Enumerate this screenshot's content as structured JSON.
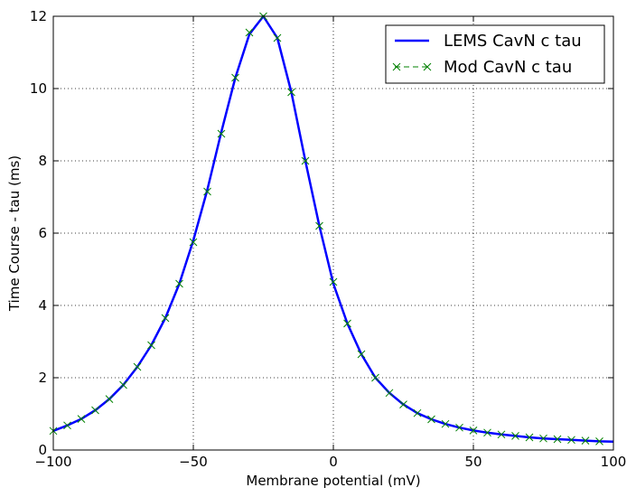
{
  "chart_data": {
    "type": "line",
    "title": "",
    "xlabel": "Membrane potential (mV)",
    "ylabel": "Time Course - tau (ms)",
    "xlim": [
      -100,
      100
    ],
    "ylim": [
      0,
      12
    ],
    "xticks": [
      -100,
      -50,
      0,
      50,
      100
    ],
    "xtick_labels": [
      "−100",
      "−50",
      "0",
      "50",
      "100"
    ],
    "yticks": [
      0,
      2,
      4,
      6,
      8,
      10,
      12
    ],
    "ytick_labels": [
      "0",
      "2",
      "4",
      "6",
      "8",
      "10",
      "12"
    ],
    "grid": true,
    "legend_position": "top-right",
    "series": [
      {
        "name": "LEMS CavN c tau",
        "color": "#0000ff",
        "style": "solid-line",
        "x": [
          -100,
          -95,
          -90,
          -85,
          -80,
          -75,
          -70,
          -65,
          -60,
          -55,
          -50,
          -45,
          -40,
          -35,
          -30,
          -25,
          -20,
          -15,
          -10,
          -5,
          0,
          5,
          10,
          15,
          20,
          25,
          30,
          35,
          40,
          45,
          50,
          55,
          60,
          65,
          70,
          75,
          80,
          85,
          90,
          95,
          100
        ],
        "y": [
          0.53,
          0.68,
          0.86,
          1.1,
          1.41,
          1.8,
          2.3,
          2.9,
          3.65,
          4.6,
          5.8,
          7.2,
          8.8,
          10.3,
          11.5,
          12.0,
          11.4,
          9.9,
          8.0,
          6.2,
          4.6,
          3.5,
          2.65,
          2.0,
          1.58,
          1.26,
          1.02,
          0.85,
          0.72,
          0.62,
          0.54,
          0.48,
          0.43,
          0.39,
          0.35,
          0.32,
          0.3,
          0.28,
          0.26,
          0.24,
          0.23
        ]
      },
      {
        "name": "Mod CavN c tau",
        "color": "#008000",
        "style": "dashed-x-markers",
        "x": [
          -100,
          -95,
          -90,
          -85,
          -80,
          -75,
          -70,
          -65,
          -60,
          -55,
          -50,
          -45,
          -40,
          -35,
          -30,
          -25,
          -20,
          -15,
          -10,
          -5,
          0,
          5,
          10,
          15,
          20,
          25,
          30,
          35,
          40,
          45,
          50,
          55,
          60,
          65,
          70,
          75,
          80,
          85,
          90,
          95
        ],
        "y": [
          0.53,
          0.68,
          0.86,
          1.1,
          1.41,
          1.8,
          2.3,
          2.9,
          3.65,
          4.6,
          5.75,
          7.15,
          8.75,
          10.3,
          11.55,
          12.0,
          11.4,
          9.9,
          8.0,
          6.2,
          4.65,
          3.5,
          2.65,
          2.0,
          1.58,
          1.26,
          1.02,
          0.85,
          0.72,
          0.62,
          0.54,
          0.48,
          0.43,
          0.39,
          0.35,
          0.32,
          0.3,
          0.28,
          0.26,
          0.24
        ]
      }
    ]
  }
}
